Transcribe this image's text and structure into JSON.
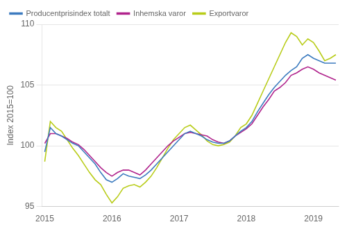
{
  "chart_data": {
    "type": "line",
    "ylabel": "Index 2015=100",
    "categories": [
      "2015",
      null,
      null,
      null,
      null,
      null,
      null,
      null,
      null,
      null,
      null,
      null,
      "2016",
      null,
      null,
      null,
      null,
      null,
      null,
      null,
      null,
      null,
      null,
      null,
      "2017",
      null,
      null,
      null,
      null,
      null,
      null,
      null,
      null,
      null,
      null,
      null,
      "2018",
      null,
      null,
      null,
      null,
      null,
      null,
      null,
      null,
      null,
      null,
      null,
      "2019",
      null,
      null,
      null,
      null
    ],
    "series": [
      {
        "name": "Producentprisindex totalt",
        "color": "#3c7bbf",
        "values": [
          99.5,
          101.5,
          101.0,
          100.8,
          100.5,
          100.2,
          100.0,
          99.5,
          99.0,
          98.5,
          97.8,
          97.2,
          97.0,
          97.3,
          97.7,
          97.5,
          97.4,
          97.3,
          97.6,
          98.0,
          98.5,
          99.0,
          99.5,
          100.0,
          100.5,
          101.0,
          101.2,
          101.0,
          100.8,
          100.5,
          100.3,
          100.2,
          100.2,
          100.4,
          100.8,
          101.2,
          101.5,
          102.0,
          102.8,
          103.5,
          104.2,
          104.8,
          105.3,
          105.8,
          106.2,
          106.5,
          107.2,
          107.5,
          107.2,
          107.0,
          106.8,
          106.8,
          106.8
        ]
      },
      {
        "name": "Inhemska varor",
        "color": "#b0238c",
        "values": [
          100.2,
          101.0,
          101.0,
          100.8,
          100.6,
          100.3,
          100.1,
          99.7,
          99.2,
          98.7,
          98.2,
          97.8,
          97.5,
          97.8,
          98.0,
          98.0,
          97.8,
          97.6,
          98.0,
          98.5,
          99.0,
          99.5,
          100.0,
          100.4,
          100.7,
          101.0,
          101.1,
          101.0,
          100.9,
          100.8,
          100.5,
          100.3,
          100.2,
          100.4,
          100.8,
          101.1,
          101.4,
          101.8,
          102.5,
          103.2,
          103.8,
          104.5,
          104.8,
          105.2,
          105.8,
          106.0,
          106.3,
          106.5,
          106.3,
          106.0,
          105.8,
          105.6,
          105.4
        ]
      },
      {
        "name": "Exportvaror",
        "color": "#b8cc18",
        "values": [
          98.7,
          102.0,
          101.5,
          101.2,
          100.5,
          99.8,
          99.2,
          98.5,
          97.8,
          97.2,
          96.8,
          96.0,
          95.3,
          95.8,
          96.5,
          96.7,
          96.8,
          96.6,
          97.0,
          97.5,
          98.2,
          99.0,
          99.8,
          100.5,
          101.0,
          101.5,
          101.7,
          101.3,
          100.9,
          100.4,
          100.1,
          100.0,
          100.1,
          100.3,
          100.8,
          101.5,
          101.8,
          102.5,
          103.5,
          104.5,
          105.5,
          106.5,
          107.5,
          108.5,
          109.3,
          109.0,
          108.3,
          108.8,
          108.5,
          107.8,
          107.0,
          107.2,
          107.5
        ]
      }
    ],
    "ylim": [
      95,
      110
    ],
    "yticks": [
      95,
      100,
      105,
      110
    ],
    "grid": true,
    "legend": "upper left"
  }
}
